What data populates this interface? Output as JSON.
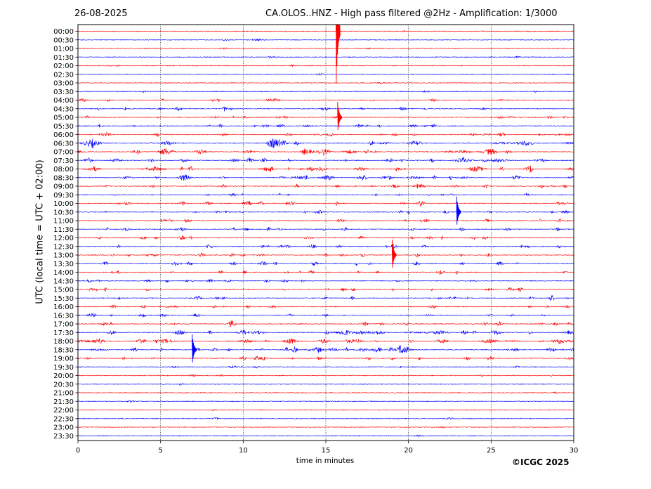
{
  "header": {
    "date": "26-08-2025",
    "title": "CA.OLOS..HNZ - High pass filtered @2Hz - Amplification: 1/3000"
  },
  "footer": {
    "copyright": "©ICGC 2025"
  },
  "chart_data": {
    "type": "line",
    "title": "CA.OLOS..HNZ - High pass filtered @2Hz - Amplification: 1/3000",
    "xlabel": "time in minutes",
    "ylabel": "UTC (local time = UTC + 02:00)",
    "xlim": [
      0,
      30
    ],
    "x_ticks": [
      0,
      5,
      10,
      15,
      20,
      25,
      30
    ],
    "x_tick_labels": [
      "0",
      "5",
      "10",
      "15",
      "20",
      "25",
      "30"
    ],
    "row_labels": [
      "00:00",
      "00:30",
      "01:00",
      "01:30",
      "02:00",
      "02:30",
      "03:00",
      "03:30",
      "04:00",
      "04:30",
      "05:00",
      "05:30",
      "06:00",
      "06:30",
      "07:00",
      "07:30",
      "08:00",
      "08:30",
      "09:00",
      "09:30",
      "10:00",
      "10:30",
      "11:00",
      "11:30",
      "12:00",
      "12:30",
      "13:00",
      "13:30",
      "14:00",
      "14:30",
      "15:00",
      "15:30",
      "16:00",
      "16:30",
      "17:00",
      "17:30",
      "18:00",
      "18:30",
      "19:00",
      "19:30",
      "20:00",
      "20:30",
      "21:00",
      "21:30",
      "22:00",
      "22:30",
      "23:00",
      "23:30"
    ],
    "row_colors": [
      "#ff0000",
      "#0000ff"
    ],
    "grid": "vertical dotted at every 5 minutes",
    "activity_level": [
      0.05,
      0.12,
      0.08,
      0.1,
      0.12,
      0.05,
      0.05,
      0.1,
      0.4,
      0.45,
      0.45,
      0.5,
      0.6,
      0.7,
      0.7,
      0.75,
      0.75,
      0.7,
      0.6,
      0.5,
      0.55,
      0.5,
      0.5,
      0.55,
      0.5,
      0.55,
      0.6,
      0.55,
      0.5,
      0.45,
      0.5,
      0.5,
      0.45,
      0.5,
      0.55,
      0.75,
      0.8,
      0.9,
      0.55,
      0.2,
      0.15,
      0.12,
      0.05,
      0.05,
      0.05,
      0.08,
      0.05,
      0.03
    ],
    "events": [
      {
        "row": 0,
        "minute": 15.7,
        "amplitude": "off-scale"
      },
      {
        "row": 10,
        "minute": 15.8,
        "amplitude": "large"
      },
      {
        "row": 26,
        "minute": 19.1,
        "amplitude": "large"
      },
      {
        "row": 21,
        "minute": 23.0,
        "amplitude": "large"
      },
      {
        "row": 37,
        "minute": 7.0,
        "amplitude": "large"
      }
    ]
  }
}
